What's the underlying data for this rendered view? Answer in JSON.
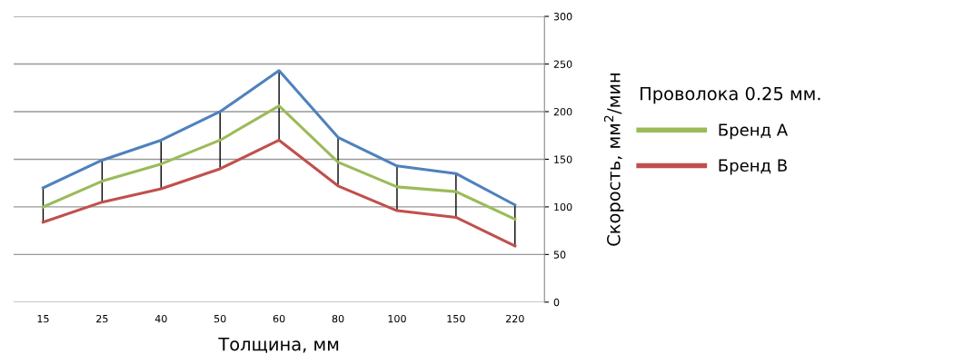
{
  "chart_data": {
    "type": "line",
    "xlabel": "Толщина, мм",
    "ylabel": "Скорость, мм$^{2}$/мин",
    "legend_title": "Проволока 0.25 мм.",
    "categories": [
      "15",
      "25",
      "40",
      "50",
      "60",
      "80",
      "100",
      "150",
      "220"
    ],
    "series": [
      {
        "color": "#4f81bd",
        "values": [
          120,
          149,
          170,
          200,
          243,
          173,
          143,
          135,
          102
        ]
      },
      {
        "name": "Бренд A",
        "color": "#9bbb59",
        "values": [
          100,
          127,
          145,
          170,
          206,
          147,
          121,
          116,
          87
        ],
        "errors": [
          [
            84,
            120
          ],
          [
            105,
            149
          ],
          [
            119,
            170
          ],
          [
            140,
            200
          ],
          [
            170,
            243
          ],
          [
            122,
            173
          ],
          [
            96,
            143
          ],
          [
            89,
            135
          ],
          [
            59,
            102
          ]
        ]
      },
      {
        "name": "Бренд B",
        "color": "#c0504d",
        "values": [
          84,
          105,
          119,
          140,
          170,
          122,
          96,
          89,
          59
        ]
      }
    ],
    "ylim": [
      0,
      300
    ],
    "yticks": [
      0,
      50,
      100,
      150,
      200,
      250,
      300
    ],
    "grid": "y",
    "legend": "right",
    "marker": "none",
    "line_style": "solid"
  }
}
